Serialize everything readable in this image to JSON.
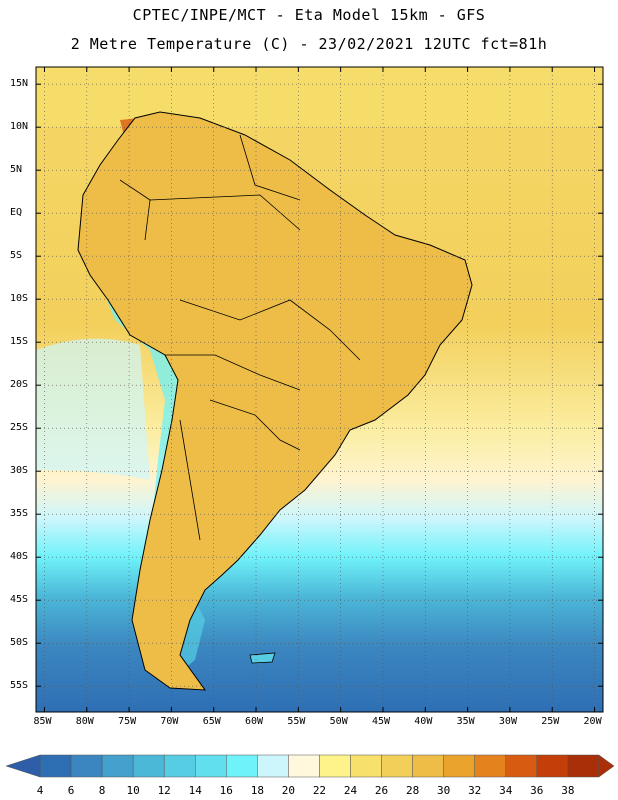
{
  "header": {
    "line1": "CPTEC/INPE/MCT -  Eta Model 15km - GFS",
    "line2": "2 Metre Temperature (C) - 23/02/2021 12UTC fct=81h"
  },
  "map": {
    "region": "South America",
    "lat_labels": [
      "15N",
      "10N",
      "5N",
      "EQ",
      "5S",
      "10S",
      "15S",
      "20S",
      "25S",
      "30S",
      "35S",
      "40S",
      "45S",
      "50S",
      "55S"
    ],
    "lat_values": [
      15,
      10,
      5,
      0,
      -5,
      -10,
      -15,
      -20,
      -25,
      -30,
      -35,
      -40,
      -45,
      -50,
      -55
    ],
    "lon_labels": [
      "85W",
      "80W",
      "75W",
      "70W",
      "65W",
      "60W",
      "55W",
      "50W",
      "45W",
      "40W",
      "35W",
      "30W",
      "25W",
      "20W"
    ],
    "lon_values": [
      -85,
      -80,
      -75,
      -70,
      -65,
      -60,
      -55,
      -50,
      -45,
      -40,
      -35,
      -30,
      -25,
      -20
    ],
    "lon_range": [
      -86,
      -19
    ],
    "lat_range": [
      -58,
      17
    ]
  },
  "colorbar": {
    "labels": [
      "4",
      "6",
      "8",
      "10",
      "12",
      "14",
      "16",
      "18",
      "20",
      "22",
      "24",
      "26",
      "28",
      "30",
      "32",
      "34",
      "36",
      "38"
    ],
    "colors": [
      "#2e6fb4",
      "#3b86c0",
      "#44a0cc",
      "#4cb8d8",
      "#56cde3",
      "#62dfee",
      "#6ff2fa",
      "#cdf6fc",
      "#fff8dd",
      "#fdf38a",
      "#f7e06c",
      "#f2cf58",
      "#eebd47",
      "#eaa42d",
      "#e4821e",
      "#d85b12",
      "#c43e0a",
      "#a82f08"
    ]
  },
  "colors": {
    "ocean_warm": "#f2cf58",
    "ocean_cool": "#4cb8d8",
    "ocean_cold": "#2e6fb4",
    "land_hot": "#c43e0a",
    "land_warm": "#eebd47"
  }
}
